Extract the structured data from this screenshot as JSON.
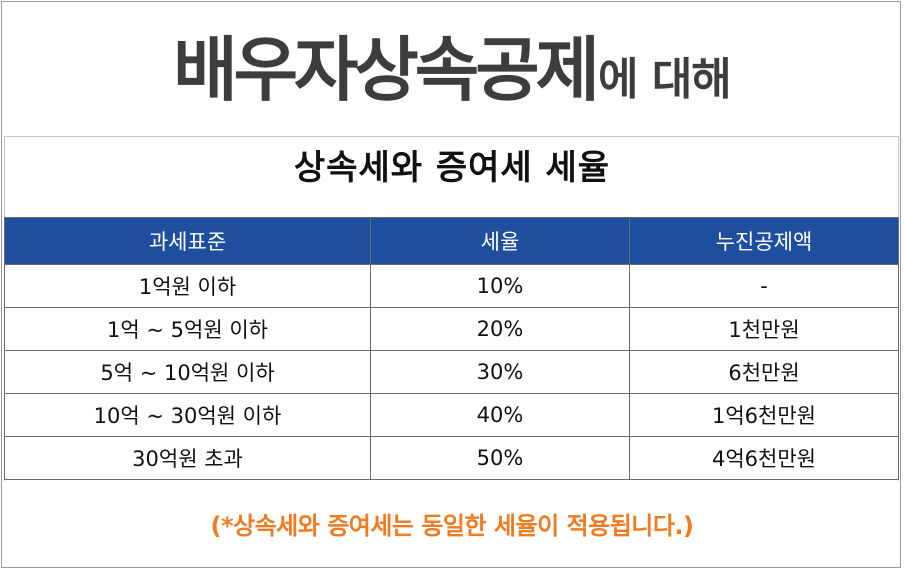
{
  "headline": {
    "main": "배우자상속공제",
    "suffix": "에 대해"
  },
  "table_title": "상속세와 증여세 세율",
  "table": {
    "headers": [
      "과세표준",
      "세율",
      "누진공제액"
    ],
    "rows": [
      [
        "1억원 이하",
        "10%",
        "-"
      ],
      [
        "1억 ~ 5억원 이하",
        "20%",
        "1천만원"
      ],
      [
        "5억 ~ 10억원 이하",
        "30%",
        "6천만원"
      ],
      [
        "10억 ~ 30억원 이하",
        "40%",
        "1억6천만원"
      ],
      [
        "30억원 초과",
        "50%",
        "4억6천만원"
      ]
    ]
  },
  "note": "(*상속세와 증여세는 동일한 세율이 적용됩니다.)",
  "colors": {
    "header_bg": "#1f4e9f",
    "note_text": "#ee7c22",
    "headline_text": "#3d3d3d"
  }
}
